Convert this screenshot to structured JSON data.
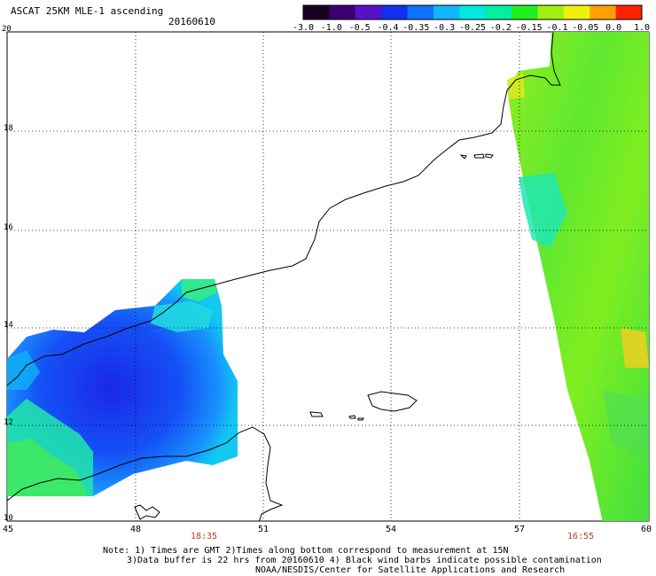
{
  "header": {
    "title": "ASCAT 25KM MLE-1 ascending",
    "date": "20160610"
  },
  "colorbar": {
    "labels": [
      "-3.0",
      "-1.0",
      "-0.5",
      "-0.4",
      "-0.35",
      "-0.3",
      "-0.25",
      "-0.2",
      "-0.15",
      "-0.1",
      "-0.05",
      "0.0",
      "1.0"
    ],
    "colors": [
      "#1a0020",
      "#3a0070",
      "#5a10c8",
      "#1030f0",
      "#1070ff",
      "#10b8ff",
      "#00e8e0",
      "#00f0a0",
      "#20f020",
      "#a0f010",
      "#f0f010",
      "#ffa000",
      "#ff2000"
    ]
  },
  "axes": {
    "y_labels": [
      "20",
      "18",
      "16",
      "14",
      "12",
      "10"
    ],
    "x_labels": [
      "45",
      "48",
      "51",
      "54",
      "57",
      "60"
    ]
  },
  "times": {
    "left": "18:35",
    "right": "16:55"
  },
  "notes": {
    "line1": "Note: 1) Times are GMT 2)Times along bottom correspond to measurement at 15N",
    "line2": "3)Data buffer is 22 hrs from 20160610 4) Black wind barbs indicate possible contamination",
    "line3": "NOAA/NESDIS/Center for Satellite Applications and Research"
  }
}
